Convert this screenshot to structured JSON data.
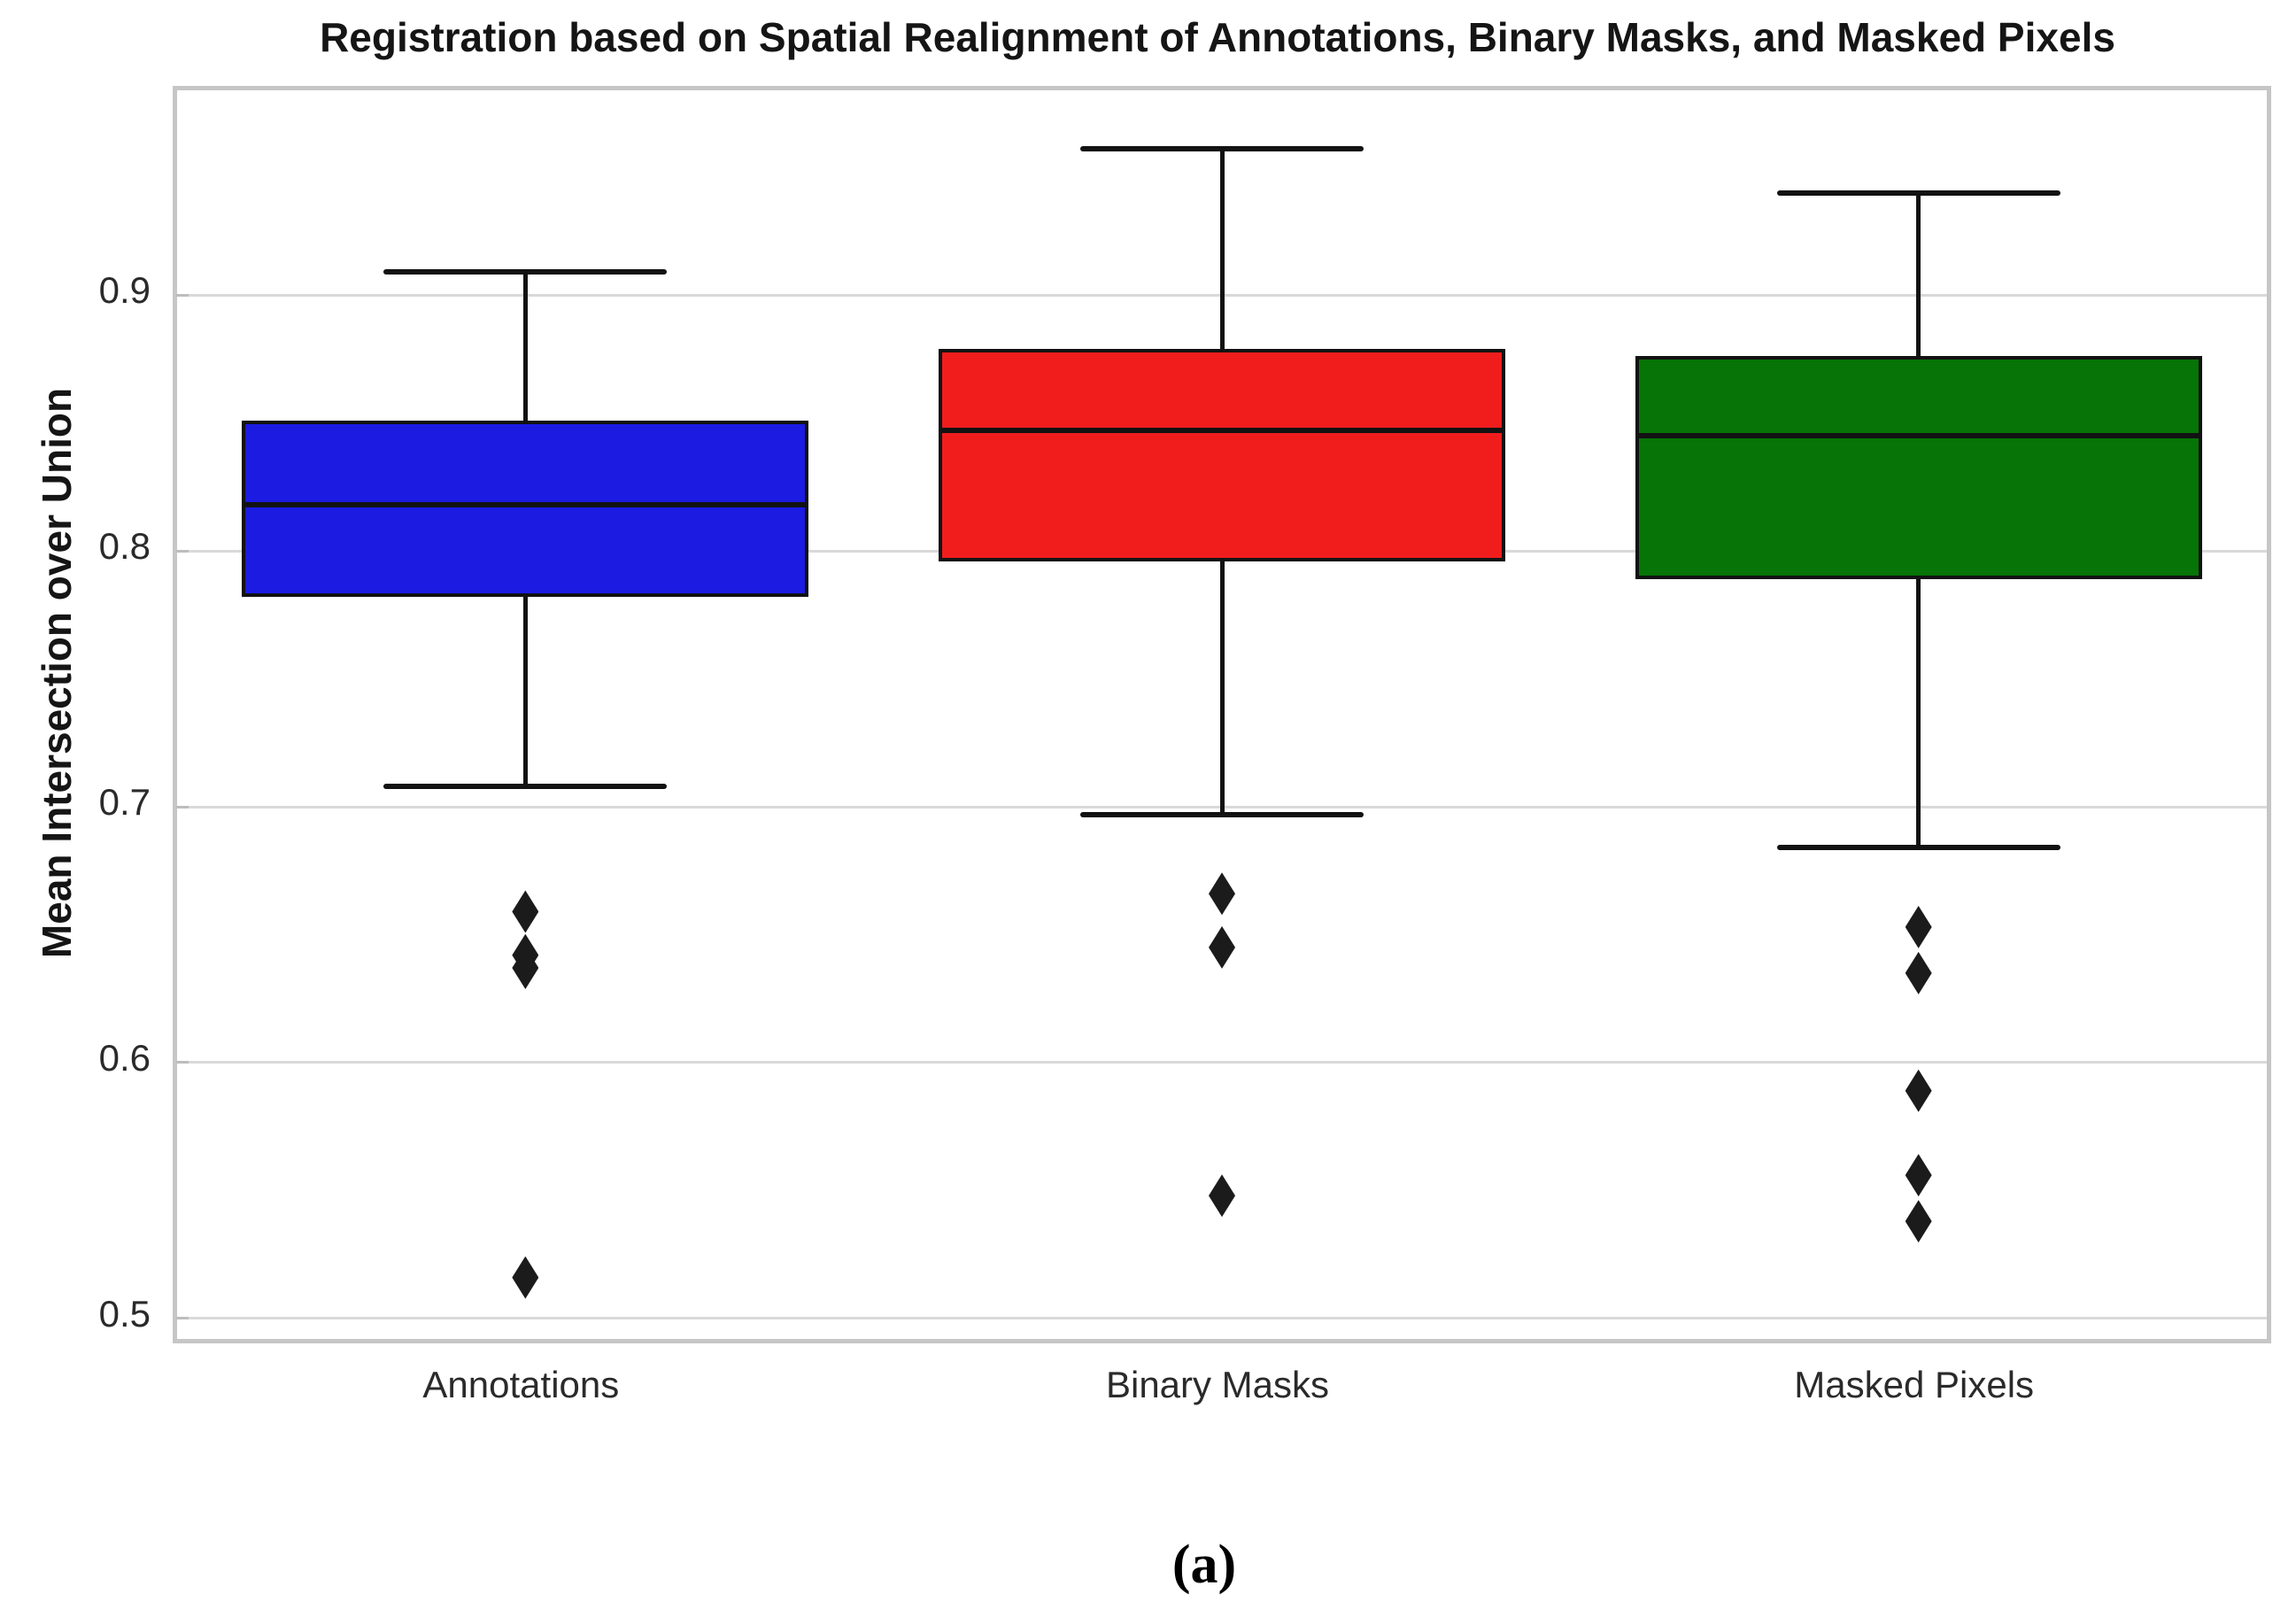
{
  "figure": {
    "title": "Registration based on Spatial Realignment of Annotations, Binary Masks, and Masked Pixels",
    "caption": "(a)"
  },
  "chart_data": {
    "type": "boxplot",
    "title": "Registration based on Spatial Realignment of Annotations, Binary Masks, and Masked Pixels",
    "xlabel": "",
    "ylabel": "Mean Intersection over Union",
    "ylim": [
      0.492,
      0.98
    ],
    "yticks": [
      0.9,
      0.8,
      0.7,
      0.6,
      0.5
    ],
    "grid": "horizontal",
    "legend": "none",
    "categories": [
      "Annotations",
      "Binary Masks",
      "Masked Pixels"
    ],
    "series": [
      {
        "name": "Annotations",
        "color": "#1b1be2",
        "whisker_high": 0.909,
        "q3": 0.851,
        "median": 0.818,
        "q1": 0.782,
        "whisker_low": 0.708,
        "outliers": [
          0.659,
          0.642,
          0.637,
          0.516
        ]
      },
      {
        "name": "Binary Masks",
        "color": "#f11d1d",
        "whisker_high": 0.957,
        "q3": 0.879,
        "median": 0.847,
        "q1": 0.796,
        "whisker_low": 0.697,
        "outliers": [
          0.666,
          0.645,
          0.548
        ]
      },
      {
        "name": "Masked Pixels",
        "color": "#067406",
        "whisker_high": 0.94,
        "q3": 0.876,
        "median": 0.845,
        "q1": 0.789,
        "whisker_low": 0.684,
        "outliers": [
          0.653,
          0.635,
          0.589,
          0.556,
          0.538
        ]
      }
    ]
  }
}
